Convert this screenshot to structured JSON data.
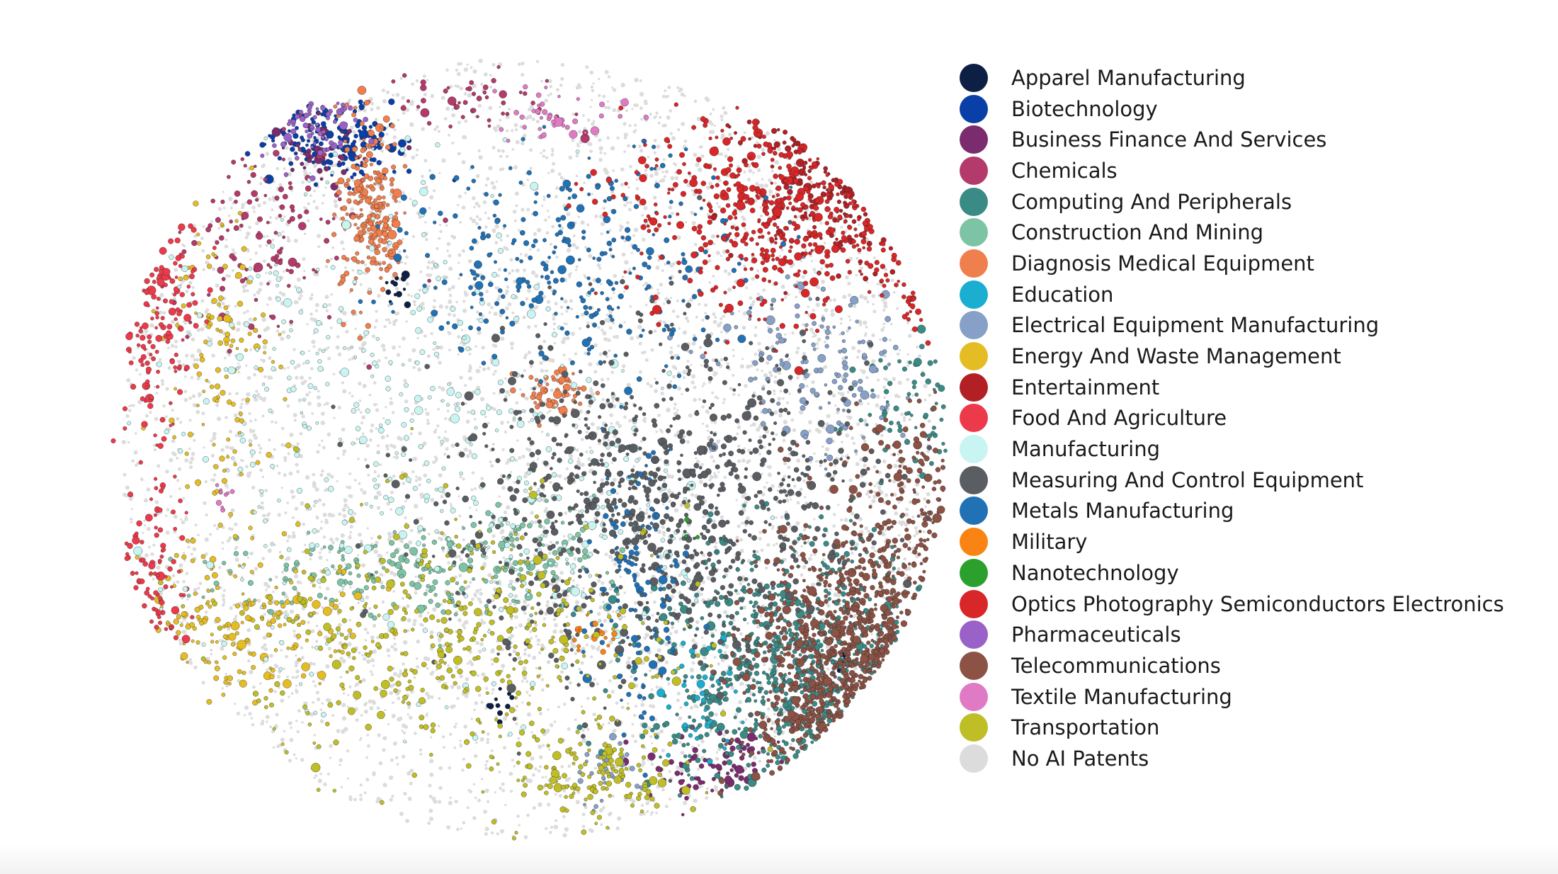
{
  "chart_data": {
    "type": "scatter",
    "title": "",
    "xlabel": "",
    "ylabel": "",
    "axes_visible": false,
    "grid": false,
    "legend_position": "right",
    "background_category": "No AI Patents",
    "series": [
      {
        "name": "Apparel Manufacturing",
        "color": "#0d1f44",
        "clusters": [
          [
            0.34,
            0.7,
            0.008,
            0.01,
            12
          ],
          [
            0.47,
            0.18,
            0.01,
            0.01,
            10
          ],
          [
            0.88,
            0.23,
            0.005,
            0.005,
            5
          ]
        ]
      },
      {
        "name": "Biotechnology",
        "color": "#0a3fa8",
        "clusters": [
          [
            0.27,
            0.89,
            0.05,
            0.025,
            160
          ]
        ]
      },
      {
        "name": "Business Finance And Services",
        "color": "#7b2c6e",
        "clusters": [
          [
            0.74,
            0.1,
            0.05,
            0.02,
            80
          ],
          [
            0.25,
            0.87,
            0.03,
            0.02,
            40
          ]
        ]
      },
      {
        "name": "Chemicals",
        "color": "#b33a6a",
        "clusters": [
          [
            0.15,
            0.78,
            0.07,
            0.07,
            120
          ],
          [
            0.45,
            0.93,
            0.05,
            0.02,
            50
          ]
        ]
      },
      {
        "name": "Computing And Peripherals",
        "color": "#3a8a86",
        "clusters": [
          [
            0.82,
            0.22,
            0.09,
            0.08,
            700
          ],
          [
            0.98,
            0.55,
            0.04,
            0.04,
            70
          ]
        ]
      },
      {
        "name": "Construction And Mining",
        "color": "#7cc4a4",
        "clusters": [
          [
            0.37,
            0.34,
            0.12,
            0.03,
            220
          ],
          [
            0.5,
            0.38,
            0.04,
            0.03,
            60
          ]
        ]
      },
      {
        "name": "Diagnosis Medical Equipment",
        "color": "#f07f4e",
        "clusters": [
          [
            0.31,
            0.8,
            0.02,
            0.06,
            240
          ],
          [
            0.53,
            0.57,
            0.02,
            0.015,
            60
          ]
        ]
      },
      {
        "name": "Education",
        "color": "#1aaed0",
        "clusters": [
          [
            0.71,
            0.18,
            0.02,
            0.04,
            40
          ]
        ]
      },
      {
        "name": "Electrical Equipment Manufacturing",
        "color": "#86a0c8",
        "clusters": [
          [
            0.85,
            0.6,
            0.06,
            0.05,
            140
          ],
          [
            0.59,
            0.09,
            0.02,
            0.02,
            30
          ]
        ]
      },
      {
        "name": "Energy And Waste Management",
        "color": "#e4bd24",
        "clusters": [
          [
            0.16,
            0.28,
            0.07,
            0.05,
            180
          ],
          [
            0.13,
            0.62,
            0.03,
            0.1,
            120
          ]
        ]
      },
      {
        "name": "Entertainment",
        "color": "#b21f24",
        "clusters": [
          [
            0.89,
            0.86,
            0.06,
            0.06,
            160
          ]
        ]
      },
      {
        "name": "Food And Agriculture",
        "color": "#ec3a4b",
        "clusters": [
          [
            0.04,
            0.72,
            0.03,
            0.09,
            140
          ],
          [
            0.05,
            0.34,
            0.02,
            0.06,
            90
          ]
        ]
      },
      {
        "name": "Manufacturing",
        "color": "#c8f4f2",
        "clusters": [
          [
            0.3,
            0.55,
            0.13,
            0.16,
            320
          ],
          [
            0.55,
            0.42,
            0.09,
            0.1,
            140
          ]
        ]
      },
      {
        "name": "Measuring And Control Equipment",
        "color": "#5a5e63",
        "clusters": [
          [
            0.66,
            0.42,
            0.13,
            0.11,
            1000
          ]
        ]
      },
      {
        "name": "Metals Manufacturing",
        "color": "#2171b5",
        "clusters": [
          [
            0.57,
            0.73,
            0.1,
            0.07,
            300
          ],
          [
            0.63,
            0.3,
            0.03,
            0.09,
            120
          ]
        ]
      },
      {
        "name": "Military",
        "color": "#f98414",
        "clusters": [
          [
            0.57,
            0.27,
            0.02,
            0.01,
            20
          ]
        ]
      },
      {
        "name": "Nanotechnology",
        "color": "#2ca02c",
        "clusters": [
          [
            0.7,
            0.4,
            0.01,
            0.01,
            3
          ]
        ]
      },
      {
        "name": "Optics Photography Semiconductors Electronics",
        "color": "#d92628",
        "clusters": [
          [
            0.82,
            0.8,
            0.1,
            0.06,
            480
          ],
          [
            0.99,
            0.72,
            0.02,
            0.03,
            50
          ]
        ]
      },
      {
        "name": "Pharmaceuticals",
        "color": "#9a62c8",
        "clusters": [
          [
            0.23,
            0.92,
            0.03,
            0.03,
            60
          ]
        ]
      },
      {
        "name": "Telecommunications",
        "color": "#8b5245",
        "clusters": [
          [
            0.9,
            0.2,
            0.06,
            0.1,
            800
          ],
          [
            0.98,
            0.45,
            0.04,
            0.05,
            100
          ]
        ]
      },
      {
        "name": "Textile Manufacturing",
        "color": "#e07ac4",
        "clusters": [
          [
            0.54,
            0.92,
            0.04,
            0.02,
            40
          ],
          [
            0.13,
            0.44,
            0.01,
            0.01,
            10
          ]
        ]
      },
      {
        "name": "Transportation",
        "color": "#c0be26",
        "clusters": [
          [
            0.41,
            0.26,
            0.12,
            0.08,
            400
          ],
          [
            0.58,
            0.09,
            0.05,
            0.03,
            140
          ]
        ]
      },
      {
        "name": "No AI Patents",
        "color": "#dcdcdc",
        "clusters": [
          [
            0.5,
            0.5,
            0.3,
            0.3,
            4500
          ]
        ]
      }
    ]
  }
}
